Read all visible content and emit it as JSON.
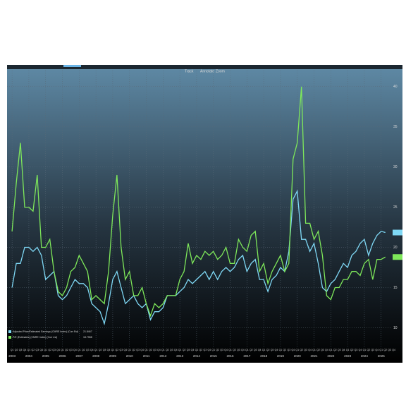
{
  "chart_data": {
    "type": "line",
    "toolbar": [
      "Track",
      "Annotate",
      "Zoom"
    ],
    "x": [
      2003,
      2003.25,
      2003.5,
      2003.75,
      2004,
      2004.25,
      2004.5,
      2004.75,
      2005,
      2005.25,
      2005.5,
      2005.75,
      2006,
      2006.25,
      2006.5,
      2006.75,
      2007,
      2007.25,
      2007.5,
      2007.75,
      2008,
      2008.25,
      2008.5,
      2008.75,
      2009,
      2009.25,
      2009.5,
      2009.75,
      2010,
      2010.25,
      2010.5,
      2010.75,
      2011,
      2011.25,
      2011.5,
      2011.75,
      2012,
      2012.25,
      2012.5,
      2012.75,
      2013,
      2013.25,
      2013.5,
      2013.75,
      2014,
      2014.25,
      2014.5,
      2014.75,
      2015,
      2015.25,
      2015.5,
      2015.75,
      2016,
      2016.25,
      2016.5,
      2016.75,
      2017,
      2017.25,
      2017.5,
      2017.75,
      2018,
      2018.25,
      2018.5,
      2018.75,
      2019,
      2019.25,
      2019.5,
      2019.75,
      2020,
      2020.25,
      2020.5,
      2020.75,
      2021,
      2021.25,
      2021.5,
      2021.75,
      2022,
      2022.25,
      2022.5,
      2022.75,
      2023,
      2023.25,
      2023.5,
      2023.75,
      2024,
      2024.25,
      2024.5,
      2024.75,
      2025,
      2025.25
    ],
    "series": [
      {
        "name": "Adjusted Price/Estimated Earnings (CMRE Index) (Curr Est)",
        "last_label": "21.8467",
        "color": "#7fd8f5",
        "values": [
          15,
          18,
          18,
          20,
          20,
          19.5,
          20,
          19,
          16,
          16.5,
          17,
          14,
          13.5,
          14,
          15,
          16,
          15.5,
          15.5,
          15,
          13,
          12.5,
          12,
          10.5,
          13,
          16,
          17,
          15,
          13,
          13.5,
          14,
          13,
          12.5,
          13,
          11,
          12,
          12,
          12.5,
          14,
          14,
          14,
          14.5,
          15,
          16,
          15.5,
          16,
          16.5,
          17,
          16,
          17,
          16,
          17,
          17.5,
          17,
          17.5,
          18.5,
          19,
          17,
          18,
          18.5,
          16,
          16,
          14.5,
          16,
          16.5,
          17.5,
          17,
          19.5,
          26,
          27,
          21,
          21,
          19.5,
          20.5,
          18,
          15,
          14.5,
          15.5,
          16,
          17,
          18,
          17.5,
          19,
          19.5,
          20.5,
          21,
          19,
          20.5,
          21.5,
          22,
          21.8467
        ]
      },
      {
        "name": "P/E (Estimates) (CMRE Index) (Curr est)",
        "last_label": "18.7988",
        "color": "#7ee85a",
        "values": [
          22,
          28,
          33,
          25,
          25,
          24.5,
          29,
          20,
          20,
          21,
          17,
          14.5,
          14,
          15,
          17,
          17.5,
          19,
          18,
          17,
          13.5,
          14,
          13.5,
          13,
          17,
          24,
          29,
          20,
          16,
          17,
          14,
          14,
          15,
          13,
          11.5,
          13,
          12.5,
          13,
          14,
          14,
          14,
          16,
          17,
          20.5,
          18,
          19,
          18.5,
          19.5,
          19,
          19.5,
          18.5,
          19,
          20,
          18,
          18,
          21,
          20,
          19.5,
          21.5,
          22,
          17,
          18,
          15.5,
          17,
          18,
          19,
          17,
          18,
          31,
          33,
          40,
          23,
          23,
          21,
          22,
          19,
          14,
          13.5,
          15,
          15,
          16,
          16,
          17,
          17,
          16.5,
          18,
          18.5,
          16,
          18.5,
          18.5,
          18.7988
        ]
      }
    ],
    "xlim": [
      2002.7,
      2025.6
    ],
    "xticks": [
      2003,
      2004,
      2005,
      2006,
      2007,
      2008,
      2009,
      2010,
      2011,
      2012,
      2013,
      2014,
      2015,
      2016,
      2017,
      2018,
      2019,
      2020,
      2021,
      2022,
      2023,
      2024,
      2025
    ],
    "quarter_labels": [
      "Q1",
      "Q2",
      "Q3",
      "Q4"
    ],
    "ylim": [
      6,
      42.7
    ],
    "yticks": [
      10,
      15,
      20,
      25,
      30,
      35,
      40
    ],
    "grid": true
  }
}
